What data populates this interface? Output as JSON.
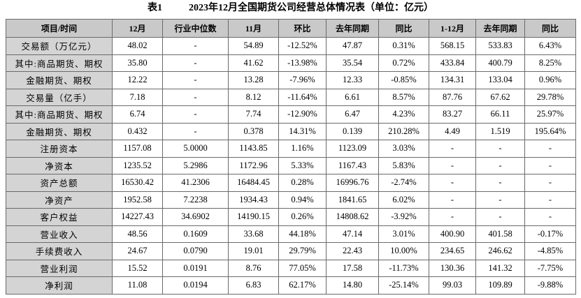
{
  "header": {
    "label": "表1",
    "title": "2023年12月全国期货公司经营总体情况表（单位：亿元）"
  },
  "table": {
    "columns": [
      "项目/时间",
      "12月",
      "行业中位数",
      "11月",
      "环比",
      "去年同期",
      "同比",
      "1-12月",
      "去年同期",
      "同比"
    ],
    "rows": [
      [
        "交易额（万亿元）",
        "48.02",
        "-",
        "54.89",
        "-12.52%",
        "47.87",
        "0.31%",
        "568.15",
        "533.83",
        "6.43%"
      ],
      [
        "其中:商品期货、期权",
        "35.80",
        "-",
        "41.62",
        "-13.98%",
        "35.54",
        "0.72%",
        "433.84",
        "400.79",
        "8.25%"
      ],
      [
        "金融期货、期权",
        "12.22",
        "-",
        "13.28",
        "-7.96%",
        "12.33",
        "-0.85%",
        "134.31",
        "133.04",
        "0.96%"
      ],
      [
        "交易量（亿手）",
        "7.18",
        "-",
        "8.12",
        "-11.64%",
        "6.61",
        "8.57%",
        "87.76",
        "67.62",
        "29.78%"
      ],
      [
        "其中:商品期货、期权",
        "6.74",
        "-",
        "7.74",
        "-12.90%",
        "6.47",
        "4.23%",
        "83.27",
        "66.11",
        "25.97%"
      ],
      [
        "金融期货、期权",
        "0.432",
        "-",
        "0.378",
        "14.31%",
        "0.139",
        "210.28%",
        "4.49",
        "1.519",
        "195.64%"
      ],
      [
        "注册资本",
        "1157.08",
        "5.0000",
        "1143.85",
        "1.16%",
        "1123.09",
        "3.03%",
        "-",
        "-",
        "-"
      ],
      [
        "净资本",
        "1235.52",
        "5.2986",
        "1172.96",
        "5.33%",
        "1167.43",
        "5.83%",
        "-",
        "-",
        "-"
      ],
      [
        "资产总额",
        "16530.42",
        "41.2306",
        "16484.45",
        "0.28%",
        "16996.76",
        "-2.74%",
        "-",
        "-",
        "-"
      ],
      [
        "净资产",
        "1952.58",
        "7.2238",
        "1934.43",
        "0.94%",
        "1841.65",
        "6.02%",
        "-",
        "-",
        "-"
      ],
      [
        "客户权益",
        "14227.43",
        "34.6902",
        "14190.15",
        "0.26%",
        "14808.62",
        "-3.92%",
        "-",
        "-",
        "-"
      ],
      [
        "营业收入",
        "48.56",
        "0.1609",
        "33.68",
        "44.18%",
        "47.14",
        "3.01%",
        "400.90",
        "401.58",
        "-0.17%"
      ],
      [
        "手续费收入",
        "24.67",
        "0.0790",
        "19.01",
        "29.79%",
        "22.43",
        "10.00%",
        "234.65",
        "246.62",
        "-4.85%"
      ],
      [
        "营业利润",
        "15.52",
        "0.0191",
        "8.76",
        "77.05%",
        "17.58",
        "-11.73%",
        "130.36",
        "141.32",
        "-7.75%"
      ],
      [
        "净利润",
        "11.08",
        "0.0194",
        "6.83",
        "62.17%",
        "14.80",
        "-25.14%",
        "99.03",
        "109.89",
        "-9.88%"
      ]
    ]
  }
}
